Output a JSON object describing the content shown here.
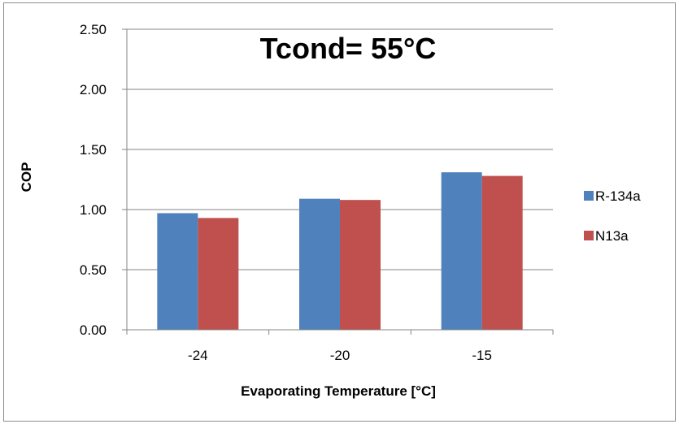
{
  "chart_data": {
    "type": "bar",
    "title": "Tcond= 55°C",
    "xlabel": "Evaporating Temperature [°C]",
    "ylabel": "COP",
    "categories": [
      "-24",
      "-20",
      "-15"
    ],
    "series": [
      {
        "name": "R-134a",
        "color": "#4f81bd",
        "values": [
          0.97,
          1.09,
          1.31
        ]
      },
      {
        "name": "N13a",
        "color": "#c0504d",
        "values": [
          0.93,
          1.08,
          1.28
        ]
      }
    ],
    "ylim": [
      0,
      2.5
    ],
    "yticks": [
      "0.00",
      "0.50",
      "1.00",
      "1.50",
      "2.00",
      "2.50"
    ],
    "grid": true,
    "legend": "right"
  }
}
